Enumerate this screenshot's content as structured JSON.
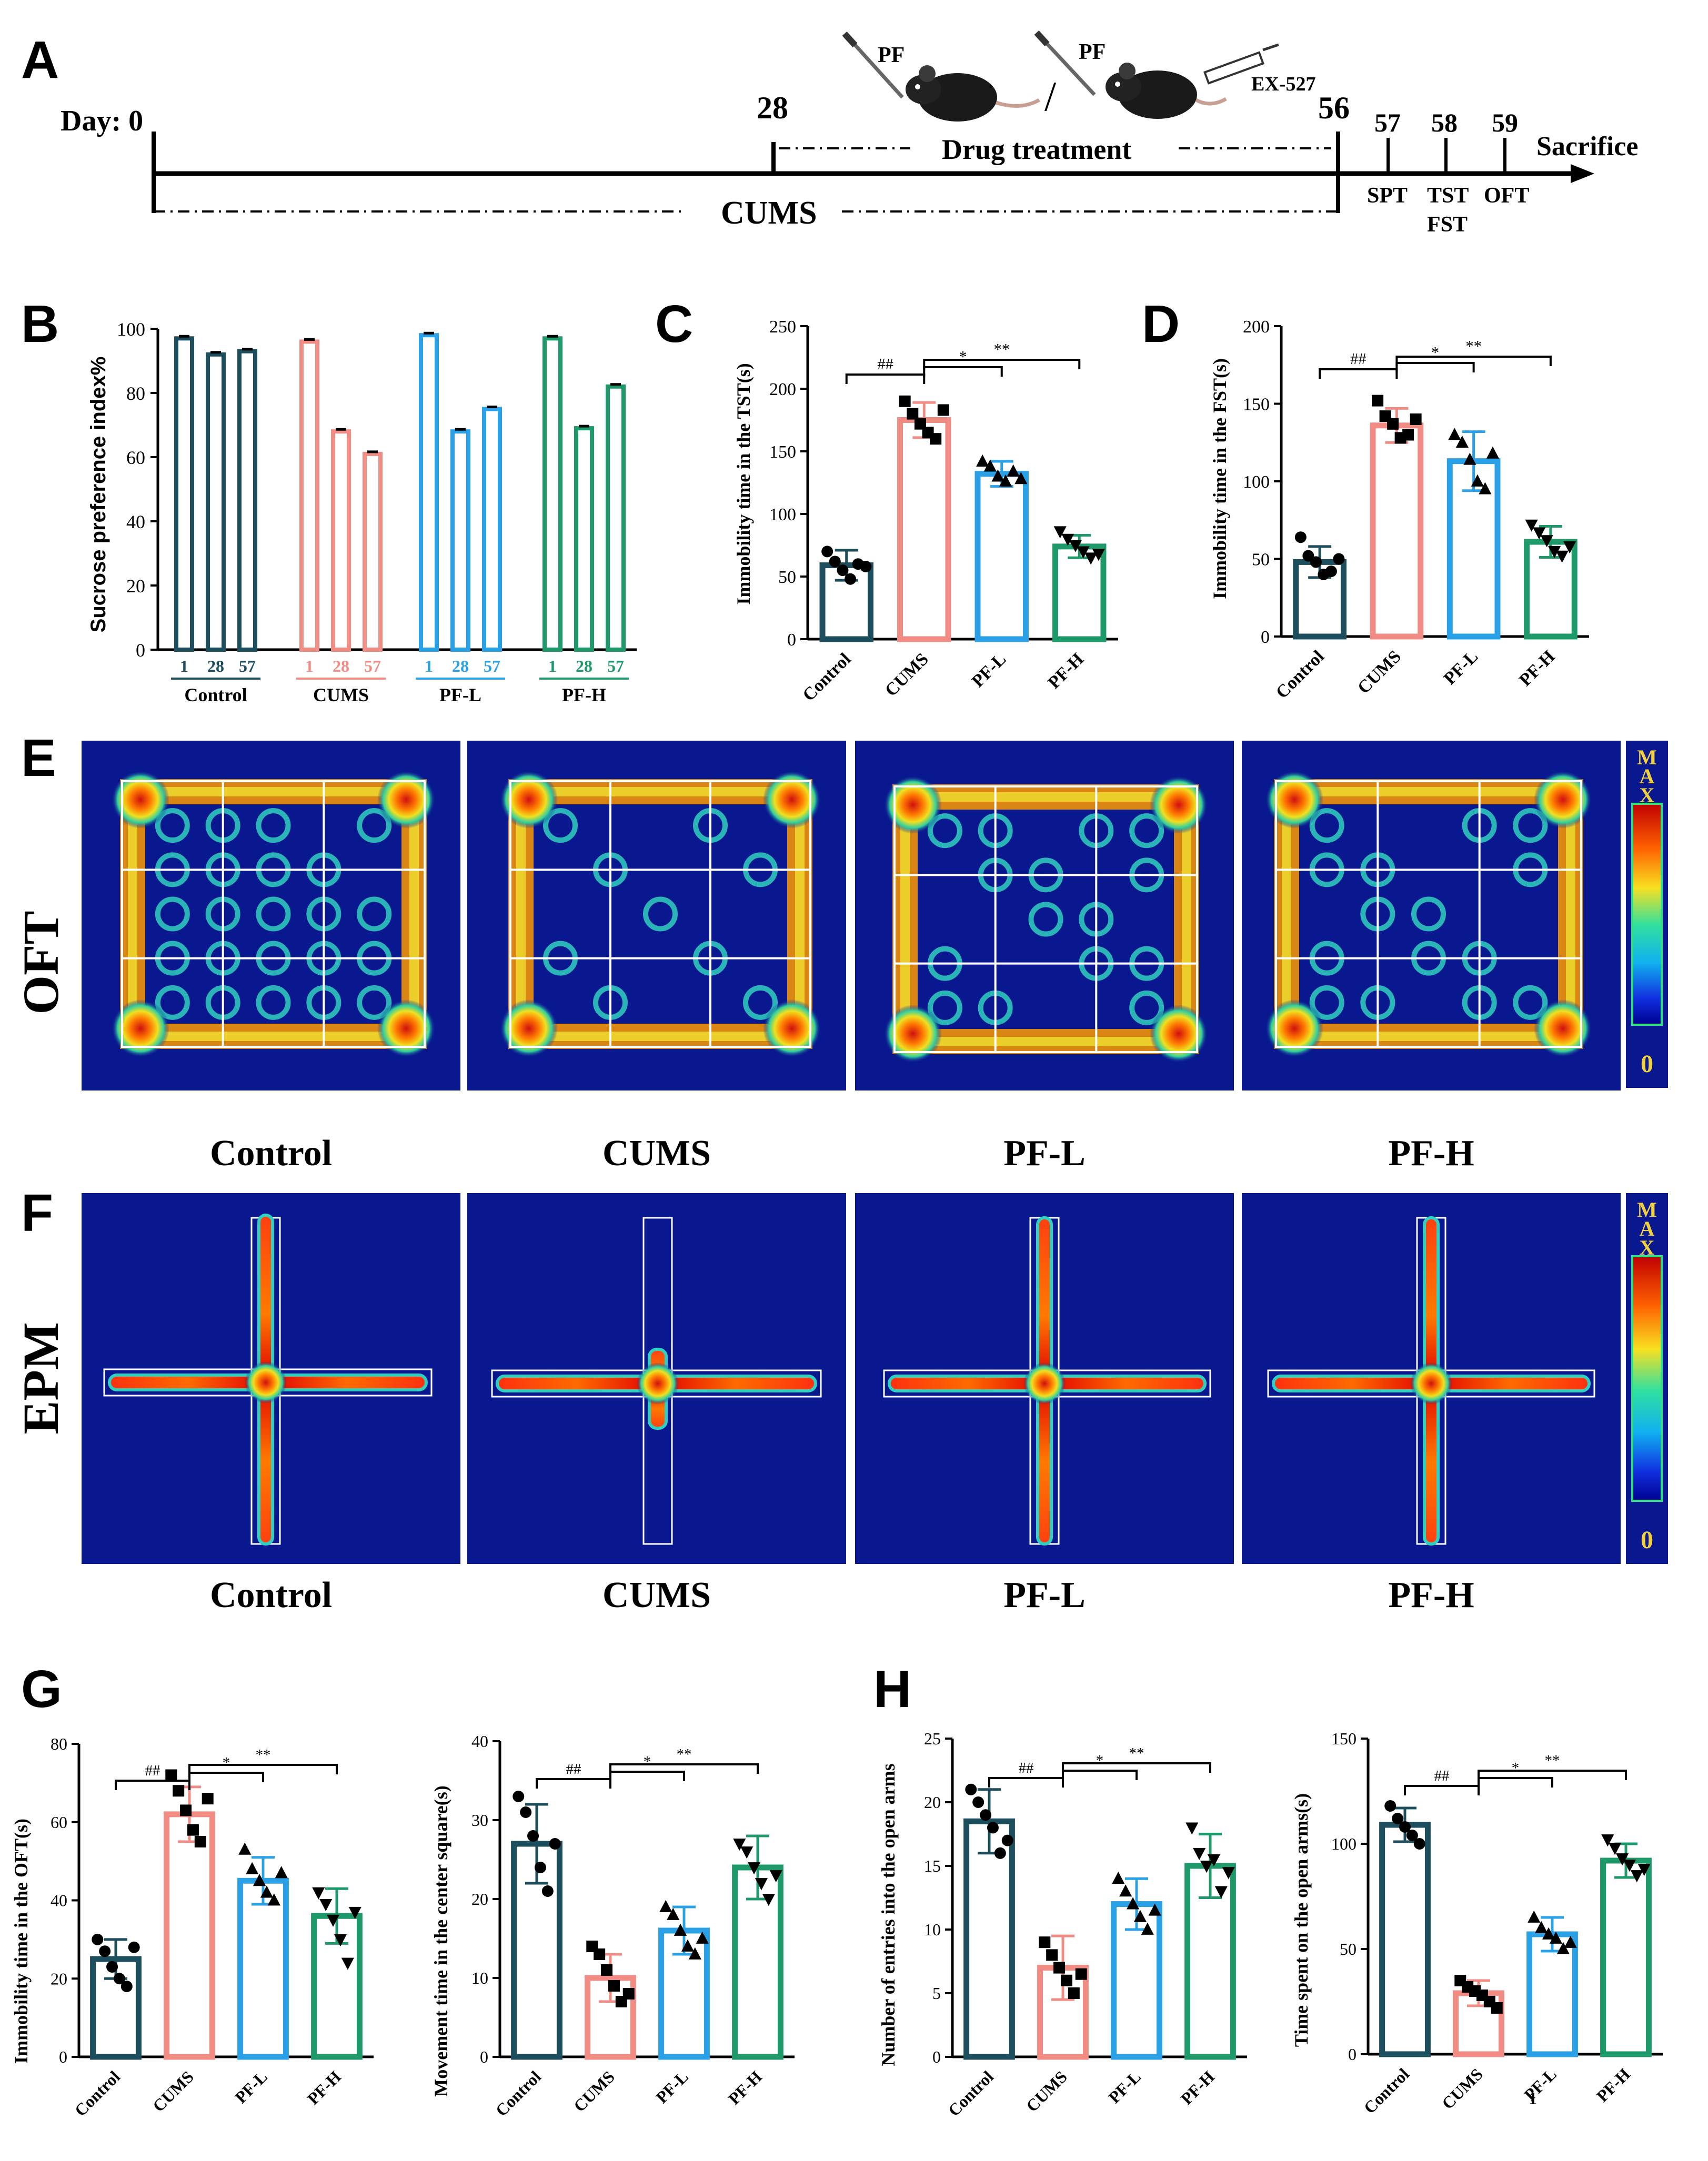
{
  "colors": {
    "control": "#1d4e5e",
    "cums": "#f08c84",
    "pfl": "#2aa0e6",
    "pfh": "#1e9a6a",
    "heat_bg": "#0a1890"
  },
  "panel_labels": {
    "A": "A",
    "B": "B",
    "C": "C",
    "D": "D",
    "E": "E",
    "F": "F",
    "G": "G",
    "H": "H"
  },
  "timeline": {
    "day_label": "Day: 0",
    "d28": "28",
    "d56": "56",
    "d57": "57",
    "d58": "58",
    "d59": "59",
    "pf1": "PF",
    "pf2": "PF",
    "slash": "/",
    "ex527": "EX-527",
    "drug_treatment": "Drug treatment",
    "cums": "CUMS",
    "sacrifice": "Sacrifice",
    "spt": "SPT",
    "tst": "TST",
    "fst": "FST",
    "oft": "OFT"
  },
  "chart_data": [
    {
      "id": "B",
      "type": "bar",
      "ylabel": "Sucrose preference index%",
      "ylim": [
        0,
        100
      ],
      "yticks": [
        0,
        20,
        40,
        60,
        80,
        100
      ],
      "groups": [
        {
          "name": "Control",
          "days": [
            "1",
            "28",
            "57"
          ],
          "values": [
            97,
            92,
            93
          ]
        },
        {
          "name": "CUMS",
          "days": [
            "1",
            "28",
            "57"
          ],
          "values": [
            96,
            68,
            61
          ]
        },
        {
          "name": "PF-L",
          "days": [
            "1",
            "28",
            "57"
          ],
          "values": [
            98,
            68,
            75
          ]
        },
        {
          "name": "PF-H",
          "days": [
            "1",
            "28",
            "57"
          ],
          "values": [
            97,
            69,
            82
          ]
        }
      ]
    },
    {
      "id": "C",
      "type": "bar",
      "ylabel": "Immobility time in the TST(s)",
      "ylim": [
        0,
        250
      ],
      "yticks": [
        0,
        50,
        100,
        150,
        200,
        250
      ],
      "categories": [
        "Control",
        "CUMS",
        "PF-L",
        "PF-H"
      ],
      "values": [
        59,
        175,
        132,
        74
      ],
      "errors": [
        12,
        14,
        10,
        9
      ],
      "points": [
        [
          70,
          62,
          55,
          48,
          60,
          58
        ],
        [
          190,
          180,
          172,
          165,
          160,
          183
        ],
        [
          142,
          138,
          130,
          126,
          134,
          128
        ],
        [
          86,
          80,
          75,
          70,
          65,
          68
        ]
      ],
      "sig": [
        {
          "from": 0,
          "to": 1,
          "label": "##"
        },
        {
          "from": 1,
          "to": 2,
          "label": "*"
        },
        {
          "from": 1,
          "to": 3,
          "label": "**"
        }
      ]
    },
    {
      "id": "D",
      "type": "bar",
      "ylabel": "Immobility time in the FST(s)",
      "ylim": [
        0,
        200
      ],
      "yticks": [
        0,
        50,
        100,
        150,
        200
      ],
      "categories": [
        "Control",
        "CUMS",
        "PF-L",
        "PF-H"
      ],
      "values": [
        48,
        136,
        113,
        61
      ],
      "errors": [
        10,
        11,
        19,
        10
      ],
      "points": [
        [
          64,
          52,
          48,
          40,
          42,
          50
        ],
        [
          152,
          142,
          137,
          128,
          130,
          140
        ],
        [
          130,
          125,
          114,
          100,
          95,
          118
        ],
        [
          72,
          67,
          62,
          55,
          52,
          58
        ]
      ],
      "sig": [
        {
          "from": 0,
          "to": 1,
          "label": "##"
        },
        {
          "from": 1,
          "to": 2,
          "label": "*"
        },
        {
          "from": 1,
          "to": 3,
          "label": "**"
        }
      ]
    },
    {
      "id": "G1",
      "type": "bar",
      "ylabel": "Immobility time in the OFT(s)",
      "ylim": [
        0,
        80
      ],
      "yticks": [
        0,
        20,
        40,
        60,
        80
      ],
      "categories": [
        "Control",
        "CUMS",
        "PF-L",
        "PF-H"
      ],
      "values": [
        25,
        62,
        45,
        36
      ],
      "errors": [
        5,
        7,
        6,
        7
      ],
      "points": [
        [
          30,
          27,
          23,
          20,
          18,
          28
        ],
        [
          72,
          68,
          63,
          58,
          55,
          66
        ],
        [
          53,
          48,
          45,
          42,
          40,
          47
        ],
        [
          42,
          39,
          35,
          30,
          24,
          37
        ]
      ],
      "sig": [
        {
          "from": 0,
          "to": 1,
          "label": "##"
        },
        {
          "from": 1,
          "to": 2,
          "label": "*"
        },
        {
          "from": 1,
          "to": 3,
          "label": "**"
        }
      ]
    },
    {
      "id": "G2",
      "type": "bar",
      "ylabel": "Movement time in the center square(s)",
      "ylim": [
        0,
        40
      ],
      "yticks": [
        0,
        10,
        20,
        30,
        40
      ],
      "categories": [
        "Control",
        "CUMS",
        "PF-L",
        "PF-H"
      ],
      "values": [
        27,
        10,
        16,
        24
      ],
      "errors": [
        5,
        3,
        3,
        4
      ],
      "points": [
        [
          33,
          31,
          28,
          24,
          21,
          27
        ],
        [
          14,
          13,
          11,
          9,
          7,
          8
        ],
        [
          19,
          18,
          16,
          14,
          13,
          15
        ],
        [
          27,
          26,
          24,
          22,
          20,
          23
        ]
      ],
      "sig": [
        {
          "from": 0,
          "to": 1,
          "label": "##"
        },
        {
          "from": 1,
          "to": 2,
          "label": "*"
        },
        {
          "from": 1,
          "to": 3,
          "label": "**"
        }
      ]
    },
    {
      "id": "H1",
      "type": "bar",
      "ylabel": "Number of entries into the open arms",
      "ylim": [
        0,
        25
      ],
      "yticks": [
        0,
        5,
        10,
        15,
        20,
        25
      ],
      "categories": [
        "Control",
        "CUMS",
        "PF-L",
        "PF-H"
      ],
      "values": [
        18.5,
        7,
        12,
        15
      ],
      "errors": [
        2.5,
        2.5,
        2,
        2.5
      ],
      "points": [
        [
          21,
          20,
          19,
          18,
          16,
          17
        ],
        [
          9,
          8,
          7,
          6,
          5,
          6.5
        ],
        [
          14,
          13,
          12,
          11,
          10,
          11.5
        ],
        [
          18,
          16,
          15,
          15.5,
          13,
          14.5
        ]
      ],
      "sig": [
        {
          "from": 0,
          "to": 1,
          "label": "##"
        },
        {
          "from": 1,
          "to": 2,
          "label": "*"
        },
        {
          "from": 1,
          "to": 3,
          "label": "**"
        }
      ]
    },
    {
      "id": "H2",
      "type": "bar",
      "ylabel": "Time spent on the open arms(s)",
      "ylim": [
        0,
        150
      ],
      "yticks": [
        0,
        50,
        100,
        150
      ],
      "categories": [
        "Control",
        "CUMS",
        "PF-L",
        "PF-H"
      ],
      "values": [
        109,
        29,
        57,
        92
      ],
      "errors": [
        8,
        6,
        8,
        8
      ],
      "points": [
        [
          118,
          112,
          108,
          104,
          100
        ],
        [
          35,
          32,
          30,
          28,
          25,
          22
        ],
        [
          65,
          60,
          57,
          55,
          50,
          53
        ],
        [
          102,
          98,
          93,
          90,
          85,
          88
        ]
      ],
      "sig": [
        {
          "from": 0,
          "to": 1,
          "label": "##"
        },
        {
          "from": 1,
          "to": 2,
          "label": "*"
        },
        {
          "from": 1,
          "to": 3,
          "label": "**"
        }
      ],
      "stray_label": "1"
    }
  ],
  "heatmaps": {
    "oft_row_label": "OFT",
    "epm_row_label": "EPM",
    "oft_captions": [
      "Control",
      "CUMS",
      "PF-L",
      "PF-H"
    ],
    "epm_captions": [
      "Control",
      "CUMS",
      "PF-L",
      "PF-H"
    ],
    "scale_max": "MAX",
    "scale_min": "0"
  }
}
